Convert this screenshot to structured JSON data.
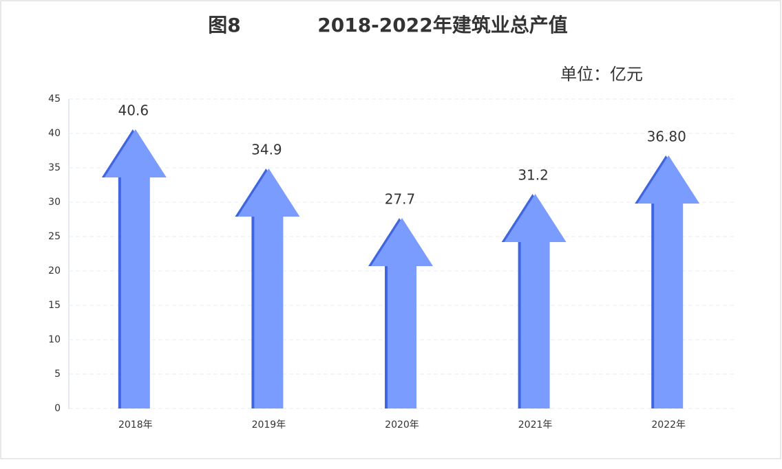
{
  "chart_data": {
    "type": "arrow-bar",
    "figure_label": "图8",
    "title": "2018-2022年建筑业总产值",
    "unit": "单位：亿元",
    "categories": [
      "2018年",
      "2019年",
      "2020年",
      "2021年",
      "2022年"
    ],
    "values": [
      40.6,
      34.9,
      27.7,
      31.2,
      36.8
    ],
    "value_labels": [
      "40.6",
      "34.9",
      "27.7",
      "31.2",
      "36.80"
    ],
    "color": "#7b9cff",
    "ylim": [
      0,
      45
    ],
    "yticks": [
      0,
      5,
      10,
      15,
      20,
      25,
      30,
      35,
      40,
      45
    ],
    "grid": true
  }
}
